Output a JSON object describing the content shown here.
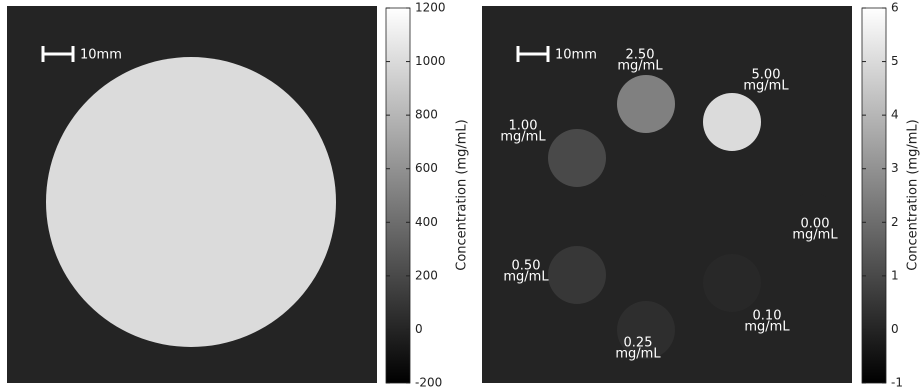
{
  "chart_data": [
    {
      "type": "image",
      "colormap": "gray",
      "background": 0,
      "scale_bar": "10mm",
      "colorbar_label": "Concentration (mg/mL)",
      "values": [
        1000
      ],
      "clim": [
        -200,
        1200
      ],
      "cticks": [
        -200,
        0,
        200,
        400,
        600,
        800,
        1000,
        1200
      ]
    },
    {
      "type": "image",
      "colormap": "gray",
      "background": 0,
      "scale_bar": "10mm",
      "colorbar_label": "Concentration (mg/mL)",
      "values": [
        2.5,
        5,
        1,
        0,
        0.5,
        0.25,
        0.1
      ],
      "value_labels": [
        "2.50",
        "5.00",
        "1.00",
        "0.00",
        "0.50",
        "0.25",
        "0.10"
      ],
      "unit_labels": [
        "mg/mL",
        "mg/mL",
        "mg/mL",
        "mg/mL",
        "mg/mL",
        "mg/mL",
        "mg/mL"
      ],
      "clim": [
        -1,
        6
      ],
      "cticks": [
        -1,
        0,
        1,
        2,
        3,
        4,
        5,
        6
      ]
    }
  ]
}
